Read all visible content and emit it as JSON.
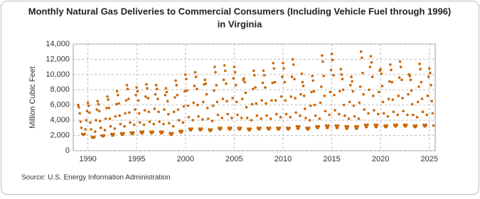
{
  "chart_data": {
    "type": "scatter",
    "title": "Monthly Natural Gas Deliveries to Commercial Consumers (Including Vehicle Fuel through 1996)",
    "subtitle": "in Virginia",
    "y_label": "Million Cubic Feet",
    "source": "Source: U.S. Energy Information Administration",
    "color": "#cc6600",
    "grid": true,
    "xlim": [
      1988.5,
      2025.6
    ],
    "xticks": [
      1990,
      1995,
      2000,
      2005,
      2010,
      2015,
      2020,
      2025
    ],
    "ylim": [
      0,
      14000
    ],
    "yticks": [
      0,
      {
        "value": 2000,
        "label": "2,000"
      },
      {
        "value": 4000,
        "label": "4,000"
      },
      {
        "value": 6000,
        "label": "6,000"
      },
      {
        "value": 8000,
        "label": "8,000"
      },
      {
        "value": 10000,
        "label": "10,000"
      },
      {
        "value": 12000,
        "label": "12,000"
      },
      {
        "value": 14000,
        "label": "14,000"
      }
    ],
    "x": [
      1989,
      1989.08,
      1989.17,
      1989.25,
      1989.33,
      1989.42,
      1989.5,
      1989.58,
      1989.67,
      1989.75,
      1989.83,
      1989.92,
      1990,
      1990.08,
      1990.17,
      1990.25,
      1990.33,
      1990.42,
      1990.5,
      1990.58,
      1990.67,
      1990.75,
      1990.83,
      1990.92,
      1991,
      1991.08,
      1991.17,
      1991.25,
      1991.33,
      1991.42,
      1991.5,
      1991.58,
      1991.67,
      1991.75,
      1991.83,
      1991.92,
      1992,
      1992.08,
      1992.17,
      1992.25,
      1992.33,
      1992.42,
      1992.5,
      1992.58,
      1992.67,
      1992.75,
      1992.83,
      1992.92,
      1993,
      1993.08,
      1993.17,
      1993.25,
      1993.33,
      1993.42,
      1993.5,
      1993.58,
      1993.67,
      1993.75,
      1993.83,
      1993.92,
      1994,
      1994.08,
      1994.17,
      1994.25,
      1994.33,
      1994.42,
      1994.5,
      1994.58,
      1994.67,
      1994.75,
      1994.83,
      1994.92,
      1995,
      1995.08,
      1995.17,
      1995.25,
      1995.33,
      1995.42,
      1995.5,
      1995.58,
      1995.67,
      1995.75,
      1995.83,
      1995.92,
      1996,
      1996.08,
      1996.17,
      1996.25,
      1996.33,
      1996.42,
      1996.5,
      1996.58,
      1996.67,
      1996.75,
      1996.83,
      1996.92,
      1997,
      1997.08,
      1997.17,
      1997.25,
      1997.33,
      1997.42,
      1997.5,
      1997.58,
      1997.67,
      1997.75,
      1997.83,
      1997.92,
      1998,
      1998.08,
      1998.17,
      1998.25,
      1998.33,
      1998.42,
      1998.5,
      1998.58,
      1998.67,
      1998.75,
      1998.83,
      1998.92,
      1999,
      1999.08,
      1999.17,
      1999.25,
      1999.33,
      1999.42,
      1999.5,
      1999.58,
      1999.67,
      1999.75,
      1999.83,
      1999.92,
      2000,
      2000.08,
      2000.17,
      2000.25,
      2000.33,
      2000.42,
      2000.5,
      2000.58,
      2000.67,
      2000.75,
      2000.83,
      2000.92,
      2001,
      2001.08,
      2001.17,
      2001.25,
      2001.33,
      2001.42,
      2001.5,
      2001.58,
      2001.67,
      2001.75,
      2001.83,
      2001.92,
      2002,
      2002.08,
      2002.17,
      2002.25,
      2002.33,
      2002.42,
      2002.5,
      2002.58,
      2002.67,
      2002.75,
      2002.83,
      2002.92,
      2003,
      2003.08,
      2003.17,
      2003.25,
      2003.33,
      2003.42,
      2003.5,
      2003.58,
      2003.67,
      2003.75,
      2003.83,
      2003.92,
      2004,
      2004.08,
      2004.17,
      2004.25,
      2004.33,
      2004.42,
      2004.5,
      2004.58,
      2004.67,
      2004.75,
      2004.83,
      2004.92,
      2005,
      2005.08,
      2005.17,
      2005.25,
      2005.33,
      2005.42,
      2005.5,
      2005.58,
      2005.67,
      2005.75,
      2005.83,
      2005.92,
      2006,
      2006.08,
      2006.17,
      2006.25,
      2006.33,
      2006.42,
      2006.5,
      2006.58,
      2006.67,
      2006.75,
      2006.83,
      2006.92,
      2007,
      2007.08,
      2007.17,
      2007.25,
      2007.33,
      2007.42,
      2007.5,
      2007.58,
      2007.67,
      2007.75,
      2007.83,
      2007.92,
      2008,
      2008.08,
      2008.17,
      2008.25,
      2008.33,
      2008.42,
      2008.5,
      2008.58,
      2008.67,
      2008.75,
      2008.83,
      2008.92,
      2009,
      2009.08,
      2009.17,
      2009.25,
      2009.33,
      2009.42,
      2009.5,
      2009.58,
      2009.67,
      2009.75,
      2009.83,
      2009.92,
      2010,
      2010.08,
      2010.17,
      2010.25,
      2010.33,
      2010.42,
      2010.5,
      2010.58,
      2010.67,
      2010.75,
      2010.83,
      2010.92,
      2011,
      2011.08,
      2011.17,
      2011.25,
      2011.33,
      2011.42,
      2011.5,
      2011.58,
      2011.67,
      2011.75,
      2011.83,
      2011.92,
      2012,
      2012.08,
      2012.17,
      2012.25,
      2012.33,
      2012.42,
      2012.5,
      2012.58,
      2012.67,
      2012.75,
      2012.83,
      2012.92,
      2013,
      2013.08,
      2013.17,
      2013.25,
      2013.33,
      2013.42,
      2013.5,
      2013.58,
      2013.67,
      2013.75,
      2013.83,
      2013.92,
      2014,
      2014.08,
      2014.17,
      2014.25,
      2014.33,
      2014.42,
      2014.5,
      2014.58,
      2014.67,
      2014.75,
      2014.83,
      2014.92,
      2015,
      2015.08,
      2015.17,
      2015.25,
      2015.33,
      2015.42,
      2015.5,
      2015.58,
      2015.67,
      2015.75,
      2015.83,
      2015.92,
      2016,
      2016.08,
      2016.17,
      2016.25,
      2016.33,
      2016.42,
      2016.5,
      2016.58,
      2016.67,
      2016.75,
      2016.83,
      2016.92,
      2017,
      2017.08,
      2017.17,
      2017.25,
      2017.33,
      2017.42,
      2017.5,
      2017.58,
      2017.67,
      2017.75,
      2017.83,
      2017.92,
      2018,
      2018.08,
      2018.17,
      2018.25,
      2018.33,
      2018.42,
      2018.5,
      2018.58,
      2018.67,
      2018.75,
      2018.83,
      2018.92,
      2019,
      2019.08,
      2019.17,
      2019.25,
      2019.33,
      2019.42,
      2019.5,
      2019.58,
      2019.67,
      2019.75,
      2019.83,
      2019.92,
      2020,
      2020.08,
      2020.17,
      2020.25,
      2020.33,
      2020.42,
      2020.5,
      2020.58,
      2020.67,
      2020.75,
      2020.83,
      2020.92,
      2021,
      2021.08,
      2021.17,
      2021.25,
      2021.33,
      2021.42,
      2021.5,
      2021.58,
      2021.67,
      2021.75,
      2021.83,
      2021.92,
      2022,
      2022.08,
      2022.17,
      2022.25,
      2022.33,
      2022.42,
      2022.5,
      2022.58,
      2022.67,
      2022.75,
      2022.83,
      2022.92,
      2023,
      2023.08,
      2023.17,
      2023.25,
      2023.33,
      2023.42,
      2023.5,
      2023.58,
      2023.67,
      2023.75,
      2023.83,
      2023.92,
      2024,
      2024.08,
      2024.17,
      2024.25,
      2024.33,
      2024.42,
      2024.5,
      2024.58,
      2024.67,
      2024.75,
      2024.83,
      2024.92,
      2025,
      2025.08,
      2025.17,
      2025.25,
      2025.33,
      2025.42
    ],
    "values": [
      6000,
      5700,
      4900,
      3800,
      3000,
      2200,
      2100,
      2100,
      2200,
      2800,
      4000,
      5200,
      6300,
      5900,
      5000,
      3700,
      2800,
      1800,
      1700,
      1700,
      1800,
      2500,
      4000,
      5400,
      6500,
      6100,
      5200,
      3900,
      3000,
      2000,
      1900,
      1900,
      2000,
      2700,
      4200,
      5600,
      7100,
      6700,
      5600,
      4200,
      3200,
      2200,
      2000,
      2000,
      2200,
      2900,
      4500,
      6100,
      7800,
      7300,
      6200,
      4600,
      3500,
      2300,
      2100,
      2100,
      2300,
      3200,
      4900,
      6600,
      8600,
      8100,
      6800,
      5000,
      3700,
      2400,
      2200,
      2200,
      2400,
      3400,
      5400,
      7300,
      8300,
      7800,
      6600,
      4900,
      3700,
      2500,
      2300,
      2300,
      2500,
      3400,
      5300,
      7100,
      8700,
      8200,
      6900,
      5100,
      3800,
      2500,
      2300,
      2300,
      2500,
      3500,
      5500,
      7400,
      8600,
      8100,
      6800,
      5100,
      3800,
      2500,
      2300,
      2300,
      2500,
      3500,
      5400,
      7300,
      8200,
      7700,
      6500,
      4800,
      3600,
      2300,
      2100,
      2100,
      2300,
      3200,
      5100,
      7000,
      9200,
      8600,
      7300,
      5400,
      4000,
      2600,
      2400,
      2400,
      2600,
      3700,
      5800,
      7800,
      10000,
      9400,
      7900,
      5900,
      4400,
      2900,
      2700,
      2700,
      2900,
      4000,
      6300,
      8500,
      10300,
      9700,
      8100,
      6000,
      4500,
      2900,
      2700,
      2700,
      2900,
      4100,
      6400,
      8700,
      9300,
      8800,
      7400,
      5600,
      4200,
      2800,
      2600,
      2600,
      2800,
      3900,
      5900,
      7900,
      11000,
      10300,
      8600,
      6400,
      4700,
      3000,
      2800,
      2800,
      3000,
      4300,
      6800,
      9300,
      11200,
      10500,
      8800,
      6500,
      4800,
      3000,
      2800,
      2800,
      3000,
      4300,
      6900,
      9500,
      11000,
      10300,
      8600,
      6400,
      4700,
      3000,
      2800,
      2800,
      3000,
      4300,
      6800,
      9300,
      9500,
      9000,
      7600,
      5700,
      4300,
      2900,
      2700,
      2700,
      2900,
      4000,
      6100,
      8100,
      10500,
      9900,
      8300,
      6200,
      4600,
      3000,
      2800,
      2800,
      3000,
      4200,
      6600,
      8900,
      10500,
      9900,
      8300,
      6200,
      4600,
      3000,
      2800,
      2800,
      3000,
      4200,
      6600,
      8900,
      11500,
      10800,
      9000,
      6600,
      4800,
      3000,
      2800,
      2800,
      3000,
      4400,
      7100,
      9700,
      11500,
      10800,
      9000,
      6600,
      4800,
      3000,
      2800,
      2800,
      3000,
      4400,
      7100,
      9700,
      12000,
      11300,
      9400,
      6900,
      5000,
      3200,
      2900,
      2900,
      3200,
      4600,
      7400,
      10100,
      9000,
      8500,
      7200,
      5500,
      4300,
      3000,
      2800,
      2800,
      3000,
      4000,
      5900,
      7700,
      9800,
      9200,
      7800,
      6000,
      4600,
      3200,
      3000,
      3000,
      3200,
      4200,
      6300,
      8400,
      12500,
      11700,
      9800,
      7200,
      5200,
      3300,
      3000,
      3000,
      3300,
      4700,
      7700,
      10600,
      12700,
      11900,
      9900,
      7300,
      5300,
      3300,
      3000,
      3000,
      3300,
      4800,
      7800,
      10700,
      10000,
      9400,
      8000,
      6000,
      4600,
      3200,
      2900,
      2900,
      3200,
      4200,
      6400,
      8600,
      9700,
      9100,
      7800,
      5900,
      4500,
      3200,
      2900,
      2900,
      3200,
      4200,
      6300,
      8400,
      13000,
      12200,
      10200,
      7400,
      5400,
      3400,
      3100,
      3100,
      3400,
      4900,
      8000,
      11000,
      12400,
      11600,
      9700,
      7200,
      5300,
      3400,
      3100,
      3100,
      3400,
      4800,
      7700,
      10500,
      10700,
      10100,
      8500,
      6400,
      4900,
      3300,
      3100,
      3100,
      3300,
      4500,
      6800,
      9100,
      11300,
      10600,
      9000,
      6700,
      5100,
      3400,
      3200,
      3200,
      3400,
      4700,
      7200,
      9600,
      11700,
      11000,
      9300,
      6900,
      5200,
      3400,
      3200,
      3200,
      3400,
      4700,
      7400,
      10000,
      9800,
      9300,
      7900,
      6100,
      4700,
      3300,
      3100,
      3100,
      3300,
      4400,
      6400,
      8400,
      11400,
      10700,
      9000,
      6800,
      5100,
      3400,
      3200,
      3200,
      3400,
      4700,
      7200,
      9700,
      10800,
      10200,
      8600,
      6500,
      4900,
      3300
    ]
  }
}
